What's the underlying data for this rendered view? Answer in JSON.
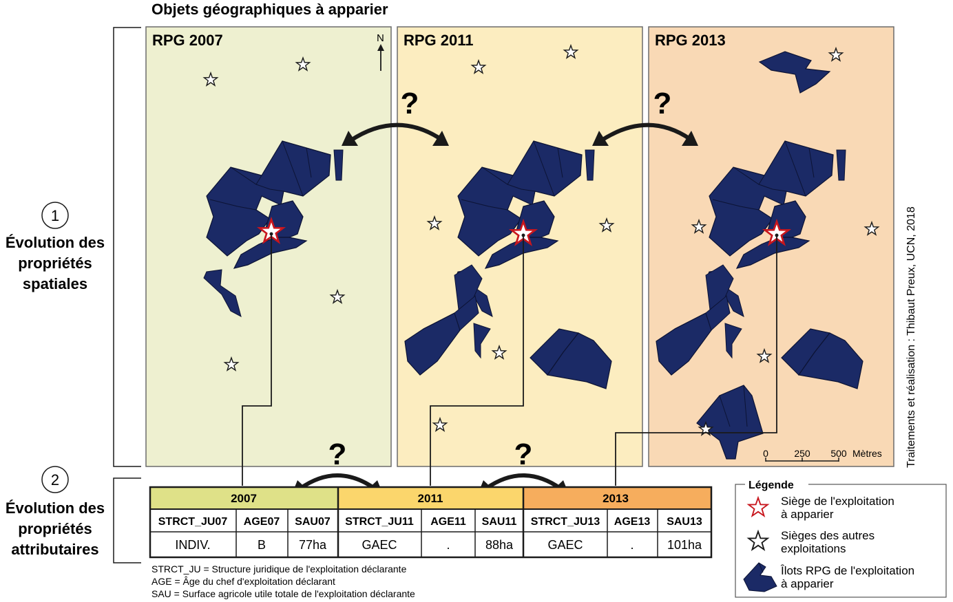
{
  "title": "Objets géographiques à apparier",
  "panels": [
    {
      "title": "RPG 2007",
      "bg": "#eef0d0"
    },
    {
      "title": "RPG 2011",
      "bg": "#fcedc0"
    },
    {
      "title": "RPG 2013",
      "bg": "#f9d9b5"
    }
  ],
  "north_label": "N",
  "question_mark": "?",
  "section1": {
    "number": "1",
    "lines": [
      "Évolution des",
      "propriétés",
      "spatiales"
    ]
  },
  "section2": {
    "number": "2",
    "lines": [
      "Évolution des",
      "propriétés",
      "attributaires"
    ]
  },
  "table": {
    "years": [
      {
        "label": "2007",
        "color": "#dfe188"
      },
      {
        "label": "2011",
        "color": "#fbd66c"
      },
      {
        "label": "2013",
        "color": "#f6ad5d"
      }
    ],
    "columns": [
      "STRCT_JU07",
      "AGE07",
      "SAU07",
      "STRCT_JU11",
      "AGE11",
      "SAU11",
      "STRCT_JU13",
      "AGE13",
      "SAU13"
    ],
    "values": [
      "INDIV.",
      "B",
      "77ha",
      "GAEC",
      ".",
      "88ha",
      "GAEC",
      ".",
      "101ha"
    ]
  },
  "footnotes": [
    "STRCT_JU = Structure juridique de l'exploitation déclarante",
    "AGE = Âge du chef d'exploitation déclarant",
    "SAU = Surface agricole utile totale de l'exploitation déclarante"
  ],
  "legend": {
    "title": "Légende",
    "items": [
      {
        "icon": "red-star-icon",
        "lines": [
          "Siège de l'exploitation",
          "à apparier"
        ]
      },
      {
        "icon": "black-star-icon",
        "lines": [
          "Sièges des autres",
          "exploitations"
        ]
      },
      {
        "icon": "parcel-icon",
        "lines": [
          "Îlots RPG de l'exploitation",
          "à apparier"
        ]
      }
    ]
  },
  "scale": {
    "ticks": [
      "0",
      "250",
      "500"
    ],
    "unit": "Mètres"
  },
  "credit": "Traitements et réalisation : Thibaut Preux, UCN, 2018",
  "colors": {
    "parcel": "#1b2a66",
    "siege": "#c8161d",
    "arrow": "#1a1a1a"
  }
}
